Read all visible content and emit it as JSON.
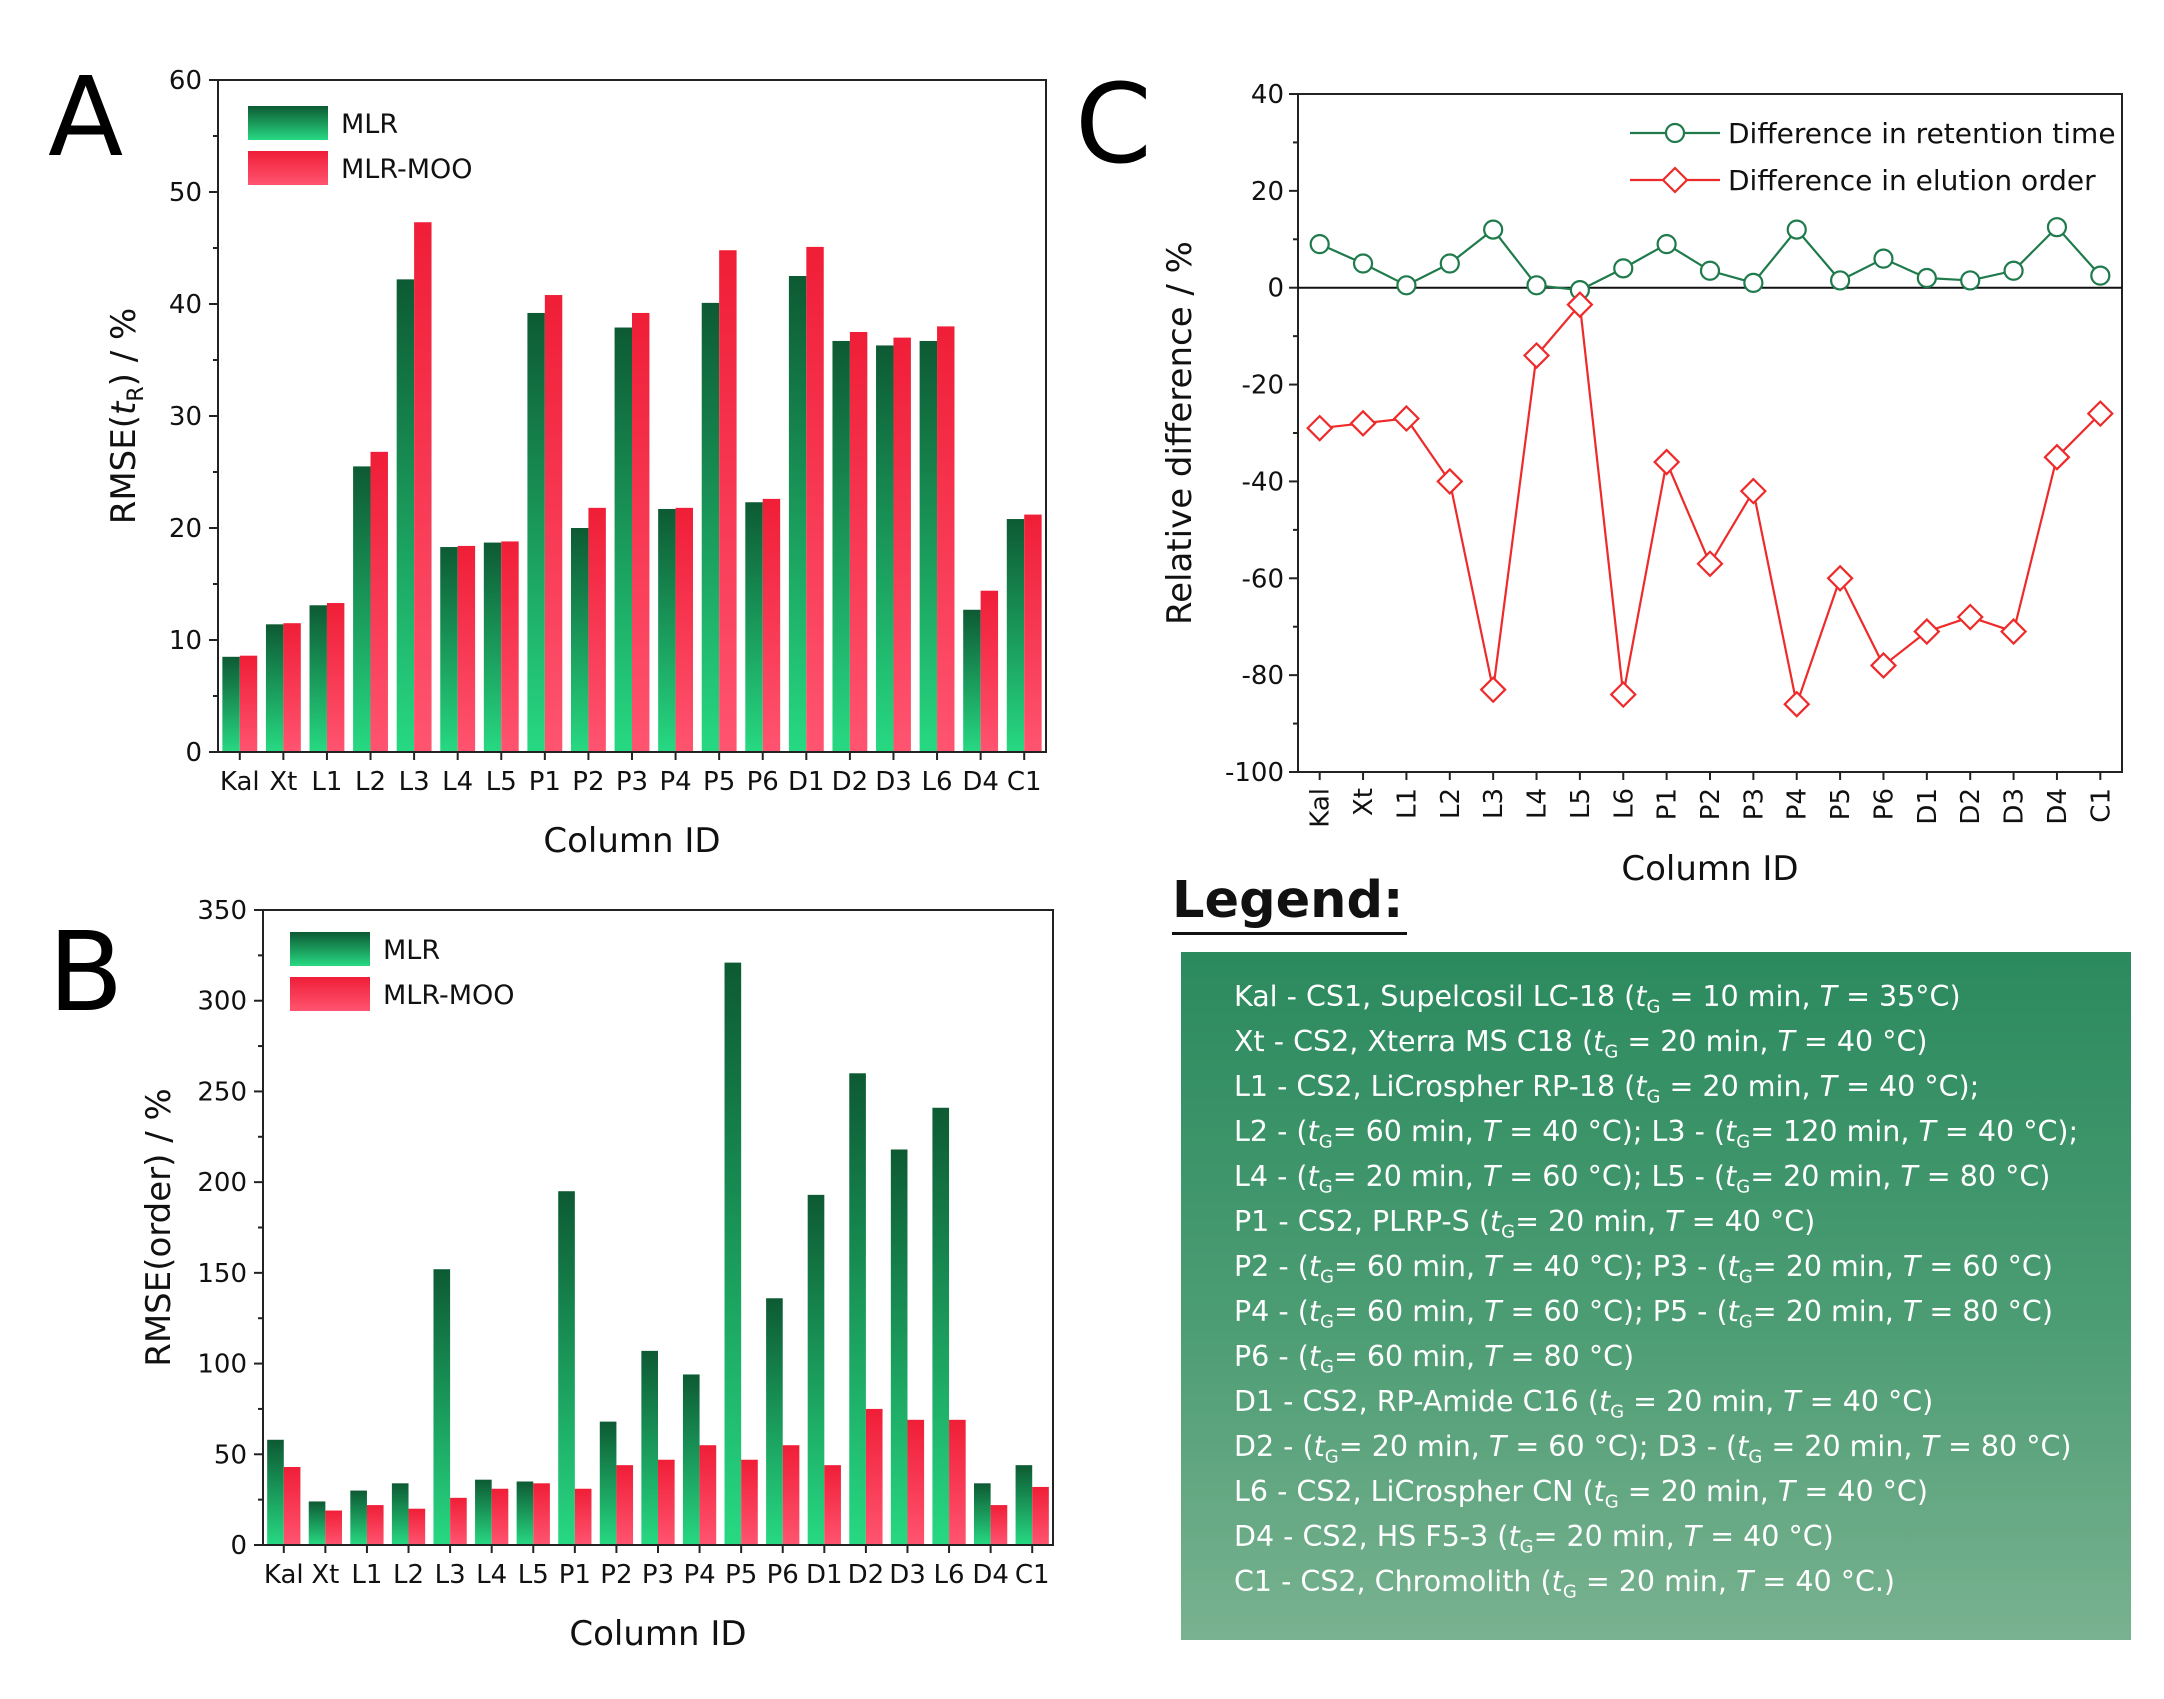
{
  "chart_data": [
    {
      "id": "A",
      "type": "bar",
      "panel_label": "A",
      "categories": [
        "Kal",
        "Xt",
        "L1",
        "L2",
        "L3",
        "L4",
        "L5",
        "P1",
        "P2",
        "P3",
        "P4",
        "P5",
        "P6",
        "D1",
        "D2",
        "D3",
        "L6",
        "D4",
        "C1"
      ],
      "series": [
        {
          "name": "MLR",
          "color": "#1a7a48",
          "values": [
            8.5,
            11.4,
            13.1,
            25.5,
            42.2,
            18.3,
            18.7,
            39.2,
            20.0,
            37.9,
            21.7,
            40.1,
            22.3,
            42.5,
            36.7,
            36.3,
            36.7,
            12.7,
            20.8
          ]
        },
        {
          "name": "MLR-MOO",
          "color": "#f0283c",
          "values": [
            8.6,
            11.5,
            13.3,
            26.8,
            47.3,
            18.4,
            18.8,
            40.8,
            21.8,
            39.2,
            21.8,
            44.8,
            22.6,
            45.1,
            37.5,
            37.0,
            38.0,
            14.4,
            21.2
          ]
        }
      ],
      "ylabel_main": "RMSE(",
      "ylabel_italic": "t",
      "ylabel_sub": "R",
      "ylabel_tail": ") / %",
      "xlabel": "Column ID",
      "ylim": [
        0,
        60
      ],
      "yticks": [
        "0",
        "10",
        "20",
        "30",
        "40",
        "50",
        "60"
      ],
      "legend": "top-left"
    },
    {
      "id": "B",
      "type": "bar",
      "panel_label": "B",
      "categories": [
        "Kal",
        "Xt",
        "L1",
        "L2",
        "L3",
        "L4",
        "L5",
        "P1",
        "P2",
        "P3",
        "P4",
        "P5",
        "P6",
        "D1",
        "D2",
        "D3",
        "L6",
        "D4",
        "C1"
      ],
      "series": [
        {
          "name": "MLR",
          "color": "#1a7a48",
          "values": [
            58,
            24,
            30,
            34,
            152,
            36,
            35,
            195,
            68,
            107,
            94,
            321,
            136,
            193,
            260,
            218,
            241,
            34,
            44
          ]
        },
        {
          "name": "MLR-MOO",
          "color": "#f0283c",
          "values": [
            43,
            19,
            22,
            20,
            26,
            31,
            34,
            31,
            44,
            47,
            55,
            47,
            55,
            44,
            75,
            69,
            69,
            22,
            32
          ]
        }
      ],
      "ylabel": "RMSE(order) / %",
      "xlabel": "Column ID",
      "ylim": [
        0,
        350
      ],
      "yticks": [
        "0",
        "50",
        "100",
        "150",
        "200",
        "250",
        "300",
        "350"
      ],
      "legend": "top-left"
    },
    {
      "id": "C",
      "type": "line",
      "panel_label": "C",
      "categories": [
        "Kal",
        "Xt",
        "L1",
        "L2",
        "L3",
        "L4",
        "L5",
        "L6",
        "P1",
        "P2",
        "P3",
        "P4",
        "P5",
        "P6",
        "D1",
        "D2",
        "D3",
        "D4",
        "C1"
      ],
      "series": [
        {
          "name": "Difference in retention time",
          "color": "#1f7a4c",
          "marker": "circle",
          "values": [
            9,
            5,
            0.5,
            5,
            12,
            0.5,
            -0.5,
            4,
            9,
            3.5,
            1,
            12,
            1.5,
            6,
            2,
            1.5,
            3.5,
            12.5,
            2.5
          ]
        },
        {
          "name": "Difference in elution order",
          "color": "#ee2a2a",
          "marker": "diamond",
          "values": [
            -29,
            -28,
            -27,
            -40,
            -83,
            -14,
            -3.5,
            -84,
            -36,
            -57,
            -42,
            -86,
            -60,
            -78,
            -71,
            -68,
            -71,
            -35,
            -26
          ]
        }
      ],
      "ylabel": "Relative difference / %",
      "xlabel": "Column ID",
      "ylim": [
        -100,
        40
      ],
      "yticks": [
        "-100",
        "-80",
        "-60",
        "-40",
        "-20",
        "0",
        "20",
        "40"
      ],
      "legend": "top-right"
    }
  ],
  "legend_box": {
    "title": "Legend:",
    "lines": [
      [
        {
          "t": "Kal - CS1, Supelcosil LC-18 ("
        },
        {
          "t": "t",
          "i": 1
        },
        {
          "t": "G",
          "s": 1
        },
        {
          "t": " = 10 min, "
        },
        {
          "t": "T",
          "i": 1
        },
        {
          "t": " = 35°C)"
        }
      ],
      [
        {
          "t": "Xt - CS2, Xterra MS C18 ("
        },
        {
          "t": "t",
          "i": 1
        },
        {
          "t": "G",
          "s": 1
        },
        {
          "t": " = 20 min, "
        },
        {
          "t": "T",
          "i": 1
        },
        {
          "t": " = 40 °C)"
        }
      ],
      [
        {
          "t": "L1 - CS2, LiCrospher RP-18 ("
        },
        {
          "t": "t",
          "i": 1
        },
        {
          "t": "G",
          "s": 1
        },
        {
          "t": " = 20 min, "
        },
        {
          "t": "T",
          "i": 1
        },
        {
          "t": " = 40 °C);"
        }
      ],
      [
        {
          "t": "L2 -  ("
        },
        {
          "t": "t",
          "i": 1
        },
        {
          "t": "G",
          "s": 1
        },
        {
          "t": "= 60 min, "
        },
        {
          "t": "T",
          "i": 1
        },
        {
          "t": " = 40 °C); L3 - ("
        },
        {
          "t": "t",
          "i": 1
        },
        {
          "t": "G",
          "s": 1
        },
        {
          "t": "= 120 min, "
        },
        {
          "t": "T",
          "i": 1
        },
        {
          "t": " = 40 °C);"
        }
      ],
      [
        {
          "t": "L4 -  ("
        },
        {
          "t": "t",
          "i": 1
        },
        {
          "t": "G",
          "s": 1
        },
        {
          "t": "= 20 min, "
        },
        {
          "t": "T",
          "i": 1
        },
        {
          "t": " = 60 °C); L5 -  ("
        },
        {
          "t": "t",
          "i": 1
        },
        {
          "t": "G",
          "s": 1
        },
        {
          "t": "= 20 min, "
        },
        {
          "t": "T",
          "i": 1
        },
        {
          "t": " = 80 °C)"
        }
      ],
      [
        {
          "t": "P1 - CS2, PLRP-S ("
        },
        {
          "t": "t",
          "i": 1
        },
        {
          "t": "G",
          "s": 1
        },
        {
          "t": "= 20 min, "
        },
        {
          "t": "T",
          "i": 1
        },
        {
          "t": " = 40 °C)"
        }
      ],
      [
        {
          "t": "P2 -  ("
        },
        {
          "t": "t",
          "i": 1
        },
        {
          "t": "G",
          "s": 1
        },
        {
          "t": "= 60 min, "
        },
        {
          "t": "T",
          "i": 1
        },
        {
          "t": " = 40 °C); P3 - ("
        },
        {
          "t": "t",
          "i": 1
        },
        {
          "t": "G",
          "s": 1
        },
        {
          "t": "= 20 min, "
        },
        {
          "t": "T",
          "i": 1
        },
        {
          "t": " = 60 °C)"
        }
      ],
      [
        {
          "t": "P4 -  ("
        },
        {
          "t": "t",
          "i": 1
        },
        {
          "t": "G",
          "s": 1
        },
        {
          "t": "= 60 min, "
        },
        {
          "t": "T",
          "i": 1
        },
        {
          "t": " = 60 °C); P5 - ("
        },
        {
          "t": "t",
          "i": 1
        },
        {
          "t": "G",
          "s": 1
        },
        {
          "t": "= 20 min, "
        },
        {
          "t": "T",
          "i": 1
        },
        {
          "t": " = 80 °C)"
        }
      ],
      [
        {
          "t": "P6 -  ("
        },
        {
          "t": "t",
          "i": 1
        },
        {
          "t": "G",
          "s": 1
        },
        {
          "t": "= 60 min, "
        },
        {
          "t": "T",
          "i": 1
        },
        {
          "t": " = 80 °C)"
        }
      ],
      [
        {
          "t": "D1 - CS2, RP-Amide C16 ("
        },
        {
          "t": "t",
          "i": 1
        },
        {
          "t": "G",
          "s": 1
        },
        {
          "t": " = 20 min, "
        },
        {
          "t": "T",
          "i": 1
        },
        {
          "t": " = 40 °C)"
        }
      ],
      [
        {
          "t": "D2 - ("
        },
        {
          "t": "t",
          "i": 1
        },
        {
          "t": "G",
          "s": 1
        },
        {
          "t": "= 20 min, "
        },
        {
          "t": "T",
          "i": 1
        },
        {
          "t": " = 60 °C); D3 - ("
        },
        {
          "t": "t",
          "i": 1
        },
        {
          "t": "G",
          "s": 1
        },
        {
          "t": " = 20 min, "
        },
        {
          "t": "T",
          "i": 1
        },
        {
          "t": " = 80 °C)"
        }
      ],
      [
        {
          "t": "L6 - CS2, LiCrospher CN ("
        },
        {
          "t": "t",
          "i": 1
        },
        {
          "t": "G",
          "s": 1
        },
        {
          "t": " = 20 min, "
        },
        {
          "t": "T",
          "i": 1
        },
        {
          "t": " = 40 °C)"
        }
      ],
      [
        {
          "t": "D4 - CS2, HS F5-3 ("
        },
        {
          "t": "t",
          "i": 1
        },
        {
          "t": "G",
          "s": 1
        },
        {
          "t": "= 20 min, "
        },
        {
          "t": "T",
          "i": 1
        },
        {
          "t": " = 40 °C)"
        }
      ],
      [
        {
          "t": "C1 - CS2, Chromolith ("
        },
        {
          "t": "t",
          "i": 1
        },
        {
          "t": "G",
          "s": 1
        },
        {
          "t": " = 20 min, "
        },
        {
          "t": "T",
          "i": 1
        },
        {
          "t": " = 40 °C.)"
        }
      ]
    ]
  }
}
